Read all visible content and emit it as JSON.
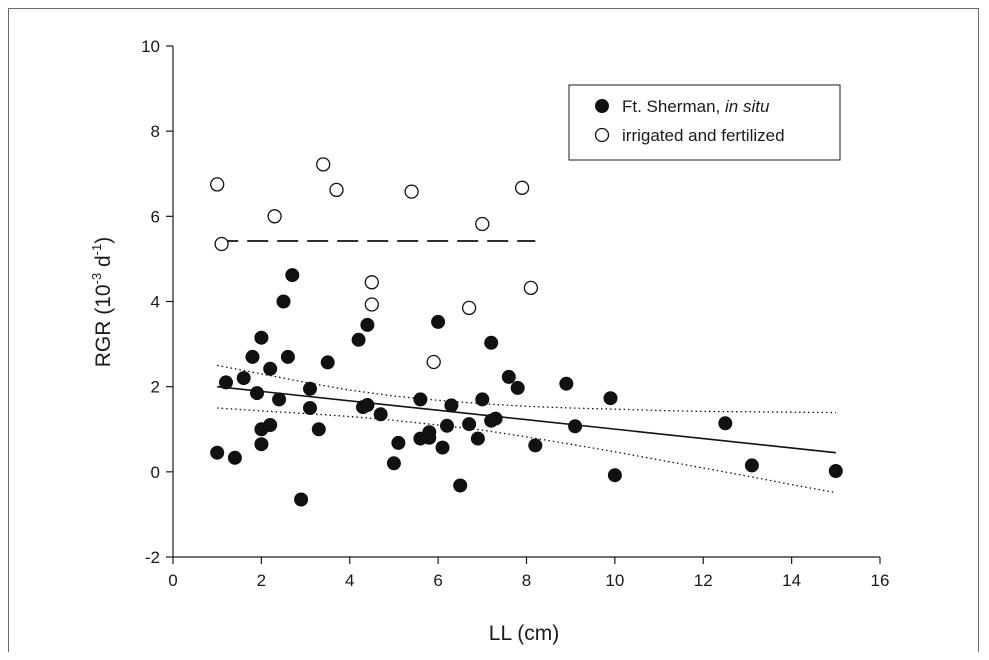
{
  "chart_data": {
    "type": "scatter",
    "xlabel": "LL (cm)",
    "ylabel": {
      "base": "RGR (10",
      "exp1": "-3",
      "mid": " d",
      "exp2": "-1",
      "end": ")"
    },
    "xlim": [
      0,
      16
    ],
    "ylim": [
      -2,
      10
    ],
    "xticks": [
      0,
      2,
      4,
      6,
      8,
      10,
      12,
      14,
      16
    ],
    "yticks": [
      -2,
      0,
      2,
      4,
      6,
      8,
      10
    ],
    "grid": false,
    "legend": {
      "placement": "top-right",
      "entries": [
        {
          "marker": "filled",
          "label_main": "Ft. Sherman, ",
          "label_italic": "in situ"
        },
        {
          "marker": "open",
          "label_main": "irrigated and fertilized",
          "label_italic": ""
        }
      ]
    },
    "series": [
      {
        "marker": "filled",
        "points": [
          [
            1.0,
            0.45
          ],
          [
            1.2,
            2.1
          ],
          [
            1.4,
            0.33
          ],
          [
            1.6,
            2.2
          ],
          [
            1.8,
            2.7
          ],
          [
            1.9,
            1.85
          ],
          [
            2.0,
            3.15
          ],
          [
            2.0,
            1.0
          ],
          [
            2.0,
            0.65
          ],
          [
            2.2,
            2.42
          ],
          [
            2.2,
            1.1
          ],
          [
            2.4,
            1.7
          ],
          [
            2.5,
            4.0
          ],
          [
            2.6,
            2.7
          ],
          [
            2.7,
            4.62
          ],
          [
            2.9,
            -0.65
          ],
          [
            3.1,
            1.95
          ],
          [
            3.1,
            1.5
          ],
          [
            3.3,
            1.0
          ],
          [
            3.5,
            2.57
          ],
          [
            4.2,
            3.1
          ],
          [
            4.3,
            1.52
          ],
          [
            4.4,
            3.45
          ],
          [
            4.4,
            1.57
          ],
          [
            4.7,
            1.35
          ],
          [
            5.0,
            0.2
          ],
          [
            5.1,
            0.68
          ],
          [
            5.6,
            1.7
          ],
          [
            5.6,
            0.78
          ],
          [
            5.8,
            0.93
          ],
          [
            5.8,
            0.8
          ],
          [
            6.0,
            3.52
          ],
          [
            6.1,
            0.57
          ],
          [
            6.2,
            1.08
          ],
          [
            6.3,
            1.56
          ],
          [
            6.5,
            -0.32
          ],
          [
            6.7,
            1.12
          ],
          [
            6.9,
            0.78
          ],
          [
            7.0,
            1.7
          ],
          [
            7.2,
            3.03
          ],
          [
            7.2,
            1.2
          ],
          [
            7.3,
            1.25
          ],
          [
            7.6,
            2.23
          ],
          [
            7.8,
            1.97
          ],
          [
            8.2,
            0.62
          ],
          [
            8.9,
            2.07
          ],
          [
            9.1,
            1.07
          ],
          [
            9.9,
            1.73
          ],
          [
            10.0,
            -0.08
          ],
          [
            12.5,
            1.14
          ],
          [
            13.1,
            0.15
          ],
          [
            15.0,
            0.02
          ]
        ]
      },
      {
        "marker": "open",
        "points": [
          [
            1.0,
            6.75
          ],
          [
            1.1,
            5.35
          ],
          [
            2.3,
            6.0
          ],
          [
            3.4,
            7.22
          ],
          [
            3.7,
            6.62
          ],
          [
            4.5,
            4.45
          ],
          [
            4.5,
            3.93
          ],
          [
            5.4,
            6.58
          ],
          [
            5.9,
            2.58
          ],
          [
            6.7,
            3.85
          ],
          [
            7.0,
            5.82
          ],
          [
            7.9,
            6.67
          ],
          [
            8.1,
            4.32
          ]
        ]
      }
    ],
    "lines": [
      {
        "style": "solid",
        "points": [
          [
            1.0,
            2.0
          ],
          [
            15.0,
            0.45
          ]
        ]
      },
      {
        "style": "dashed",
        "points": [
          [
            1.0,
            5.42
          ],
          [
            8.2,
            5.42
          ]
        ]
      },
      {
        "style": "dotted",
        "points": [
          [
            1,
            2.5
          ],
          [
            2,
            2.3
          ],
          [
            3,
            2.1
          ],
          [
            4,
            1.92
          ],
          [
            5,
            1.78
          ],
          [
            6,
            1.68
          ],
          [
            7,
            1.6
          ],
          [
            8,
            1.54
          ],
          [
            9,
            1.5
          ],
          [
            10,
            1.47
          ],
          [
            11,
            1.44
          ],
          [
            12,
            1.42
          ],
          [
            13,
            1.41
          ],
          [
            14,
            1.4
          ],
          [
            15,
            1.39
          ]
        ]
      },
      {
        "style": "dotted",
        "points": [
          [
            1,
            1.5
          ],
          [
            2,
            1.43
          ],
          [
            3,
            1.37
          ],
          [
            4,
            1.3
          ],
          [
            5,
            1.21
          ],
          [
            6,
            1.1
          ],
          [
            7,
            0.98
          ],
          [
            8,
            0.82
          ],
          [
            9,
            0.65
          ],
          [
            10,
            0.47
          ],
          [
            11,
            0.28
          ],
          [
            12,
            0.09
          ],
          [
            13,
            -0.1
          ],
          [
            14,
            -0.3
          ],
          [
            15,
            -0.49
          ]
        ]
      }
    ]
  }
}
